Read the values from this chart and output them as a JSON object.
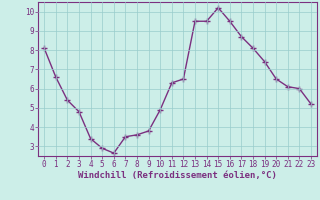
{
  "x": [
    0,
    1,
    2,
    3,
    4,
    5,
    6,
    7,
    8,
    9,
    10,
    11,
    12,
    13,
    14,
    15,
    16,
    17,
    18,
    19,
    20,
    21,
    22,
    23
  ],
  "y": [
    8.1,
    6.6,
    5.4,
    4.8,
    3.4,
    2.9,
    2.65,
    3.5,
    3.6,
    3.8,
    4.9,
    6.3,
    6.5,
    9.5,
    9.5,
    10.2,
    9.5,
    8.7,
    8.1,
    7.4,
    6.5,
    6.1,
    6.0,
    5.2
  ],
  "line_color": "#7b3080",
  "marker": "+",
  "marker_size": 4,
  "marker_linewidth": 1.0,
  "background_color": "#cceee8",
  "grid_color": "#99cccc",
  "xlabel": "Windchill (Refroidissement éolien,°C)",
  "ylim": [
    2.5,
    10.5
  ],
  "xlim": [
    -0.5,
    23.5
  ],
  "yticks": [
    3,
    4,
    5,
    6,
    7,
    8,
    9,
    10
  ],
  "xticks": [
    0,
    1,
    2,
    3,
    4,
    5,
    6,
    7,
    8,
    9,
    10,
    11,
    12,
    13,
    14,
    15,
    16,
    17,
    18,
    19,
    20,
    21,
    22,
    23
  ],
  "tick_label_color": "#7b3080",
  "tick_label_size": 5.5,
  "xlabel_size": 6.5,
  "spine_color": "#7b3080",
  "linewidth": 1.0
}
